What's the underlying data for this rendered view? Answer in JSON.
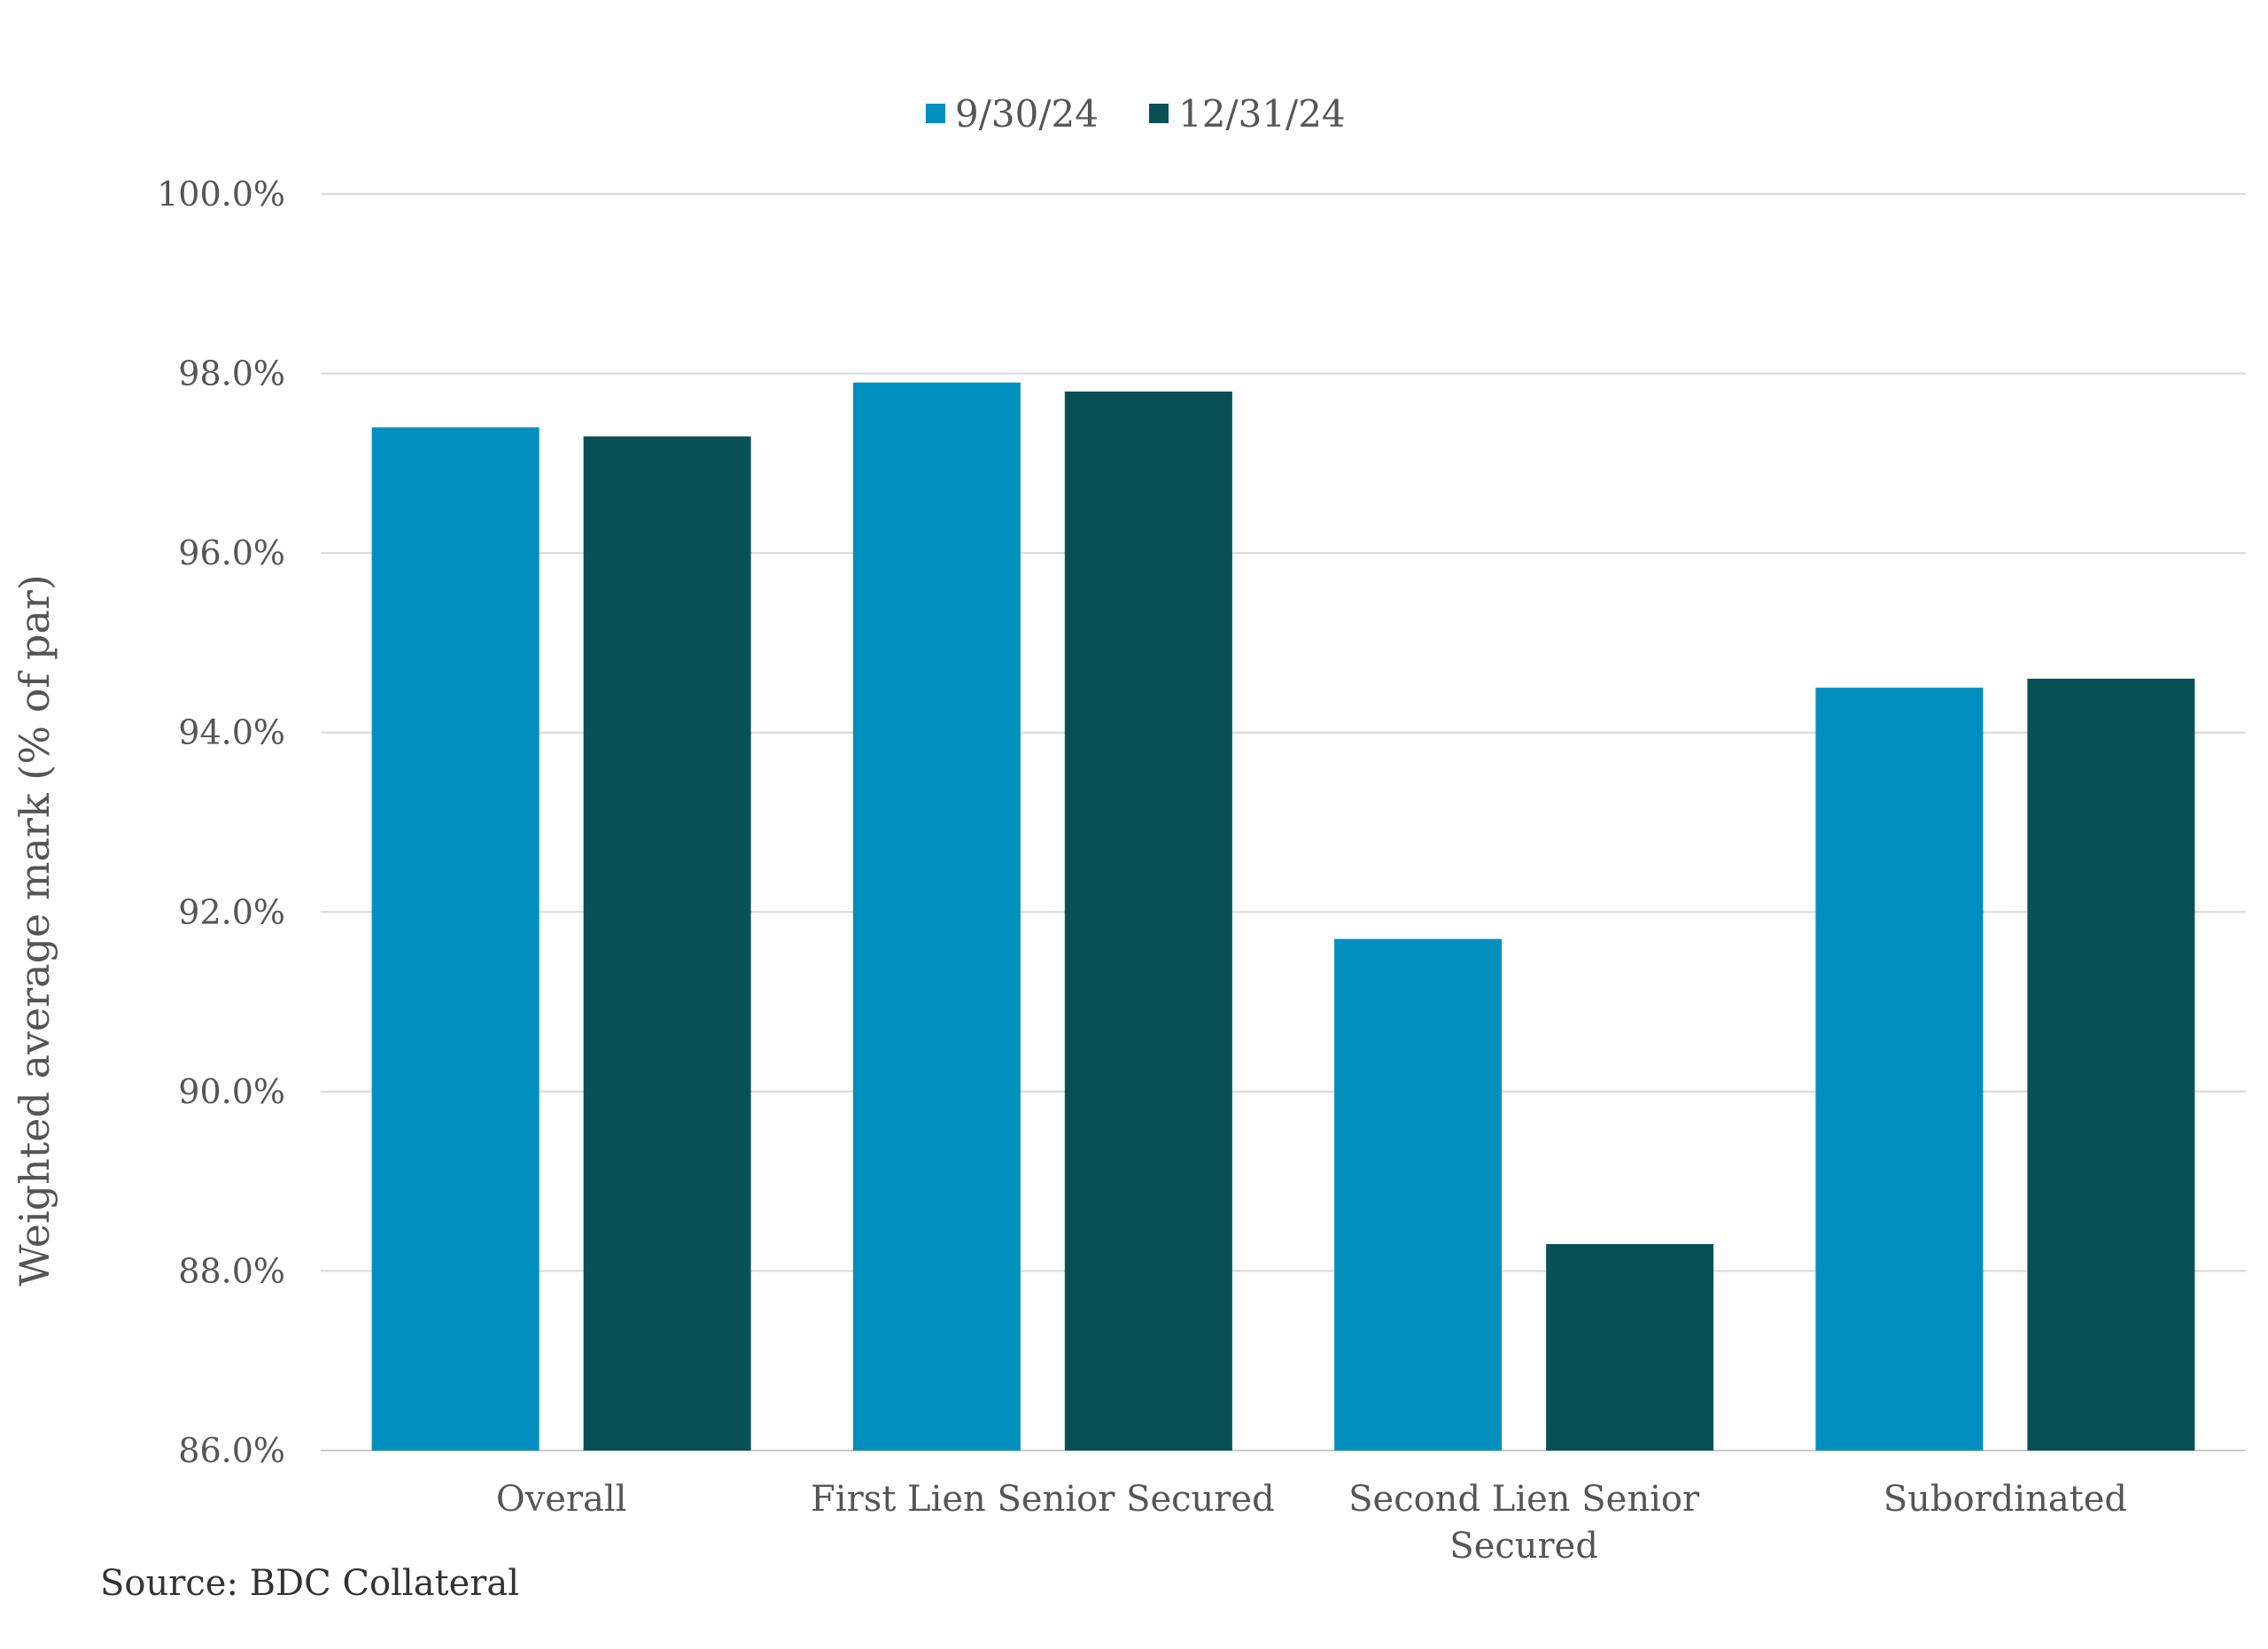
{
  "chart_data": {
    "type": "bar",
    "ylabel": "Weighted average mark (% of par)",
    "ylim": [
      86,
      100
    ],
    "yticks": [
      86,
      88,
      90,
      92,
      94,
      96,
      98,
      100
    ],
    "ytick_labels": [
      "86.0%",
      "88.0%",
      "90.0%",
      "92.0%",
      "94.0%",
      "96.0%",
      "98.0%",
      "100.0%"
    ],
    "categories": [
      [
        "Overall"
      ],
      [
        "First Lien Senior Secured"
      ],
      [
        "Second Lien Senior",
        "Secured"
      ],
      [
        "Subordinated"
      ]
    ],
    "series": [
      {
        "name": "9/30/24",
        "color": "#008fbe",
        "values": [
          97.4,
          97.9,
          91.7,
          94.5
        ]
      },
      {
        "name": "12/31/24",
        "color": "#075156",
        "values": [
          97.3,
          97.8,
          88.3,
          94.6
        ]
      }
    ],
    "legend": "top-center",
    "grid": true,
    "source": "Source: BDC Collateral"
  }
}
